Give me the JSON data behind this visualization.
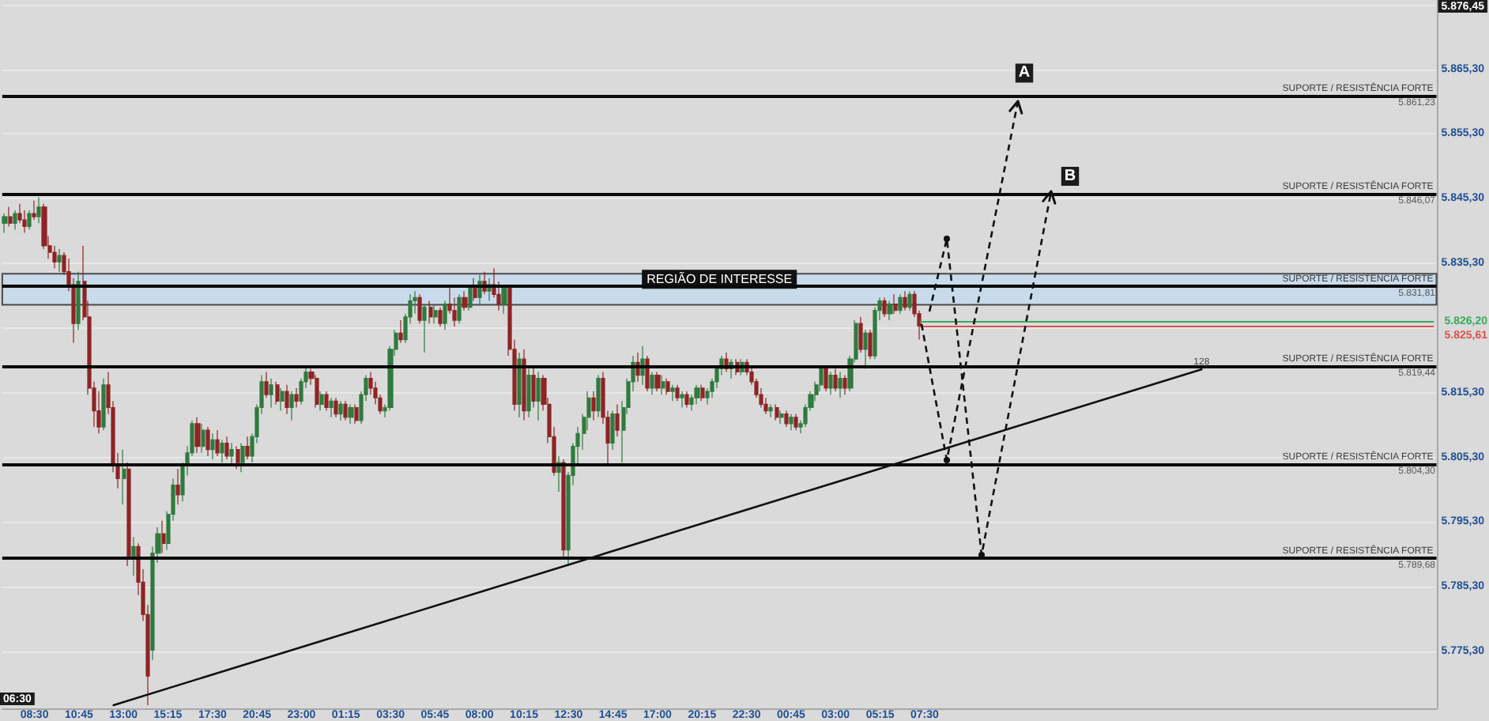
{
  "chart_data": {
    "type": "candlestick",
    "categories": [
      null,
      null,
      null,
      null,
      null,
      null,
      "08:30",
      null,
      null,
      null,
      null,
      null,
      null,
      null,
      null,
      "10:45",
      null,
      null,
      null,
      null,
      null,
      null,
      null,
      null,
      "13:00",
      null,
      null,
      null,
      null,
      null,
      null,
      null,
      null,
      "15:15",
      null,
      null,
      null,
      null,
      null,
      null,
      null,
      null,
      "17:30",
      null,
      null,
      null,
      null,
      null,
      null,
      null,
      null,
      "20:45",
      null,
      null,
      null,
      null,
      null,
      null,
      null,
      null,
      "23:00",
      null,
      null,
      null,
      null,
      null,
      null,
      null,
      null,
      "01:15",
      null,
      null,
      null,
      null,
      null,
      null,
      null,
      null,
      "03:30",
      null,
      null,
      null,
      null,
      null,
      null,
      null,
      null,
      "05:45",
      null,
      null,
      null,
      null,
      null,
      null,
      null,
      null,
      "08:00",
      null,
      null,
      null,
      null,
      null,
      null,
      null,
      null,
      "10:15",
      null,
      null,
      null,
      null,
      null,
      null,
      null,
      null,
      "12:30",
      null,
      null,
      null,
      null,
      null,
      null,
      null,
      null,
      "14:45",
      null,
      null,
      null,
      null,
      null,
      null,
      null,
      null,
      "17:00",
      null,
      null,
      null,
      null,
      null,
      null,
      null,
      null,
      "20:15",
      null,
      null,
      null,
      null,
      null,
      null,
      null,
      null,
      "22:30",
      null,
      null,
      null,
      null,
      null,
      null,
      null,
      null,
      "00:45",
      null,
      null,
      null,
      null,
      null,
      null,
      null,
      null,
      "03:00",
      null,
      null,
      null,
      null,
      null,
      null,
      null,
      null,
      "05:15",
      null,
      null,
      null,
      null,
      null,
      null,
      null,
      null,
      "07:30",
      null,
      null,
      null,
      null,
      null,
      null,
      null,
      null,
      null,
      null,
      null,
      null,
      null,
      null,
      null,
      null,
      null,
      null,
      null,
      null,
      null,
      null,
      null,
      null,
      null,
      null,
      null,
      null,
      null,
      null,
      null,
      null,
      null,
      null,
      null,
      null,
      null,
      null,
      null,
      null,
      null,
      null,
      null,
      null,
      null,
      null,
      null,
      null,
      null,
      null,
      null,
      null,
      null,
      null,
      null,
      null,
      null,
      null,
      null,
      null,
      null,
      null,
      null,
      null,
      null,
      null,
      null,
      null,
      null,
      null,
      null,
      null,
      null,
      null,
      null,
      null,
      null,
      null,
      null,
      null,
      null,
      null,
      null,
      null,
      null,
      null,
      null,
      null,
      null,
      null,
      null,
      null,
      null,
      null,
      null,
      null,
      null,
      null,
      null,
      null,
      null,
      null,
      null
    ],
    "ohlc": [
      [
        5841.5,
        5843.0,
        5840.0,
        5842.5
      ],
      [
        5842.5,
        5844.0,
        5841.0,
        5841.5
      ],
      [
        5841.5,
        5843.5,
        5840.5,
        5843.0
      ],
      [
        5843.0,
        5844.5,
        5841.5,
        5842.0
      ],
      [
        5842.0,
        5843.5,
        5840.0,
        5841.0
      ],
      [
        5841.0,
        5843.5,
        5840.5,
        5843.0
      ],
      [
        5843.0,
        5845.0,
        5842.0,
        5842.5
      ],
      [
        5842.5,
        5845.5,
        5841.5,
        5844.0
      ],
      [
        5844.0,
        5844.5,
        5837.5,
        5838.0
      ],
      [
        5838.0,
        5839.5,
        5836.0,
        5837.0
      ],
      [
        5837.0,
        5838.0,
        5834.5,
        5835.5
      ],
      [
        5835.5,
        5837.5,
        5834.0,
        5836.5
      ],
      [
        5836.5,
        5837.0,
        5833.5,
        5834.0
      ],
      [
        5834.0,
        5836.0,
        5831.0,
        5832.0
      ],
      [
        5832.0,
        5833.0,
        5823.0,
        5826.0
      ],
      [
        5826.0,
        5834.0,
        5825.0,
        5832.5
      ],
      [
        5832.5,
        5838.0,
        5826.5,
        5827.0
      ],
      [
        5827.0,
        5829.5,
        5815.0,
        5816.0
      ],
      [
        5816.0,
        5817.0,
        5810.0,
        5812.5
      ],
      [
        5812.5,
        5815.5,
        5809.0,
        5810.0
      ],
      [
        5810.0,
        5817.5,
        5809.5,
        5816.5
      ],
      [
        5816.5,
        5818.5,
        5812.0,
        5813.0
      ],
      [
        5813.0,
        5814.0,
        5803.0,
        5804.0
      ],
      [
        5804.0,
        5806.0,
        5800.5,
        5802.0
      ],
      [
        5802.0,
        5806.5,
        5798.0,
        5803.5
      ],
      [
        5803.5,
        5804.5,
        5788.5,
        5790.0
      ],
      [
        5790.0,
        5793.0,
        5787.0,
        5791.5
      ],
      [
        5791.5,
        5792.0,
        5784.0,
        5786.0
      ],
      [
        5786.0,
        5788.0,
        5780.0,
        5781.0
      ],
      [
        5781.0,
        5782.5,
        5767.0,
        5771.5
      ],
      [
        5775.5,
        5791.5,
        5774.0,
        5790.5
      ],
      [
        5790.5,
        5794.5,
        5789.0,
        5793.5
      ],
      [
        5793.5,
        5795.5,
        5790.5,
        5792.0
      ],
      [
        5792.0,
        5797.0,
        5791.0,
        5796.5
      ],
      [
        5796.5,
        5802.0,
        5795.5,
        5801.0
      ],
      [
        5801.0,
        5803.5,
        5798.0,
        5799.5
      ],
      [
        5799.5,
        5804.5,
        5798.5,
        5804.0
      ],
      [
        5804.0,
        5807.0,
        5802.5,
        5806.0
      ],
      [
        5806.0,
        5811.0,
        5805.5,
        5810.5
      ],
      [
        5810.5,
        5811.5,
        5806.0,
        5807.0
      ],
      [
        5807.0,
        5810.5,
        5806.0,
        5809.5
      ],
      [
        5809.5,
        5810.0,
        5805.5,
        5806.5
      ],
      [
        5806.5,
        5809.0,
        5805.0,
        5808.0
      ],
      [
        5808.0,
        5809.5,
        5805.5,
        5806.0
      ],
      [
        5806.0,
        5808.0,
        5804.5,
        5807.5
      ],
      [
        5807.5,
        5808.5,
        5805.0,
        5805.5
      ],
      [
        5805.5,
        5807.5,
        5804.0,
        5806.5
      ],
      [
        5806.5,
        5807.0,
        5803.5,
        5804.5
      ],
      [
        5804.5,
        5807.5,
        5803.0,
        5807.0
      ],
      [
        5807.0,
        5808.5,
        5805.0,
        5805.5
      ],
      [
        5805.5,
        5809.0,
        5804.5,
        5808.5
      ],
      [
        5808.5,
        5813.5,
        5807.5,
        5813.0
      ],
      [
        5813.0,
        5818.0,
        5812.0,
        5817.0
      ],
      [
        5817.0,
        5818.5,
        5814.5,
        5815.0
      ],
      [
        5815.0,
        5817.5,
        5813.0,
        5816.5
      ],
      [
        5816.5,
        5817.0,
        5813.5,
        5814.0
      ],
      [
        5814.0,
        5816.0,
        5812.5,
        5815.5
      ],
      [
        5815.5,
        5816.5,
        5812.0,
        5813.0
      ],
      [
        5813.0,
        5815.5,
        5811.0,
        5815.0
      ],
      [
        5815.0,
        5816.0,
        5813.0,
        5814.0
      ],
      [
        5814.0,
        5817.5,
        5813.5,
        5817.0
      ],
      [
        5817.0,
        5819.5,
        5816.0,
        5818.5
      ],
      [
        5818.5,
        5819.0,
        5816.5,
        5817.5
      ],
      [
        5817.5,
        5818.0,
        5813.0,
        5813.5
      ],
      [
        5813.5,
        5815.5,
        5812.5,
        5815.0
      ],
      [
        5815.0,
        5815.5,
        5812.5,
        5813.0
      ],
      [
        5813.0,
        5814.5,
        5811.5,
        5814.0
      ],
      [
        5814.0,
        5814.5,
        5811.5,
        5812.0
      ],
      [
        5812.0,
        5814.0,
        5811.0,
        5813.5
      ],
      [
        5813.5,
        5814.0,
        5811.0,
        5811.5
      ],
      [
        5811.5,
        5813.5,
        5810.5,
        5813.0
      ],
      [
        5813.0,
        5813.5,
        5810.5,
        5811.0
      ],
      [
        5811.0,
        5815.5,
        5810.5,
        5815.0
      ],
      [
        5815.0,
        5818.0,
        5814.0,
        5817.5
      ],
      [
        5817.5,
        5818.5,
        5815.0,
        5816.0
      ],
      [
        5816.0,
        5817.0,
        5813.5,
        5814.5
      ],
      [
        5814.5,
        5815.0,
        5812.0,
        5812.5
      ],
      [
        5812.5,
        5813.5,
        5811.5,
        5813.0
      ],
      [
        5813.0,
        5822.5,
        5812.5,
        5822.0
      ],
      [
        5822.0,
        5825.0,
        5821.0,
        5824.5
      ],
      [
        5824.5,
        5826.5,
        5823.0,
        5823.5
      ],
      [
        5823.5,
        5827.5,
        5823.0,
        5827.0
      ],
      [
        5827.0,
        5830.5,
        5826.0,
        5829.5
      ],
      [
        5829.5,
        5831.0,
        5827.5,
        5830.0
      ],
      [
        5830.0,
        5830.5,
        5826.0,
        5826.5
      ],
      [
        5826.5,
        5829.0,
        5821.5,
        5828.5
      ],
      [
        5828.5,
        5829.5,
        5826.0,
        5827.0
      ],
      [
        5827.0,
        5829.0,
        5826.0,
        5828.0
      ],
      [
        5828.0,
        5828.5,
        5825.5,
        5826.0
      ],
      [
        5826.0,
        5829.5,
        5825.0,
        5829.0
      ],
      [
        5829.0,
        5831.5,
        5827.5,
        5828.0
      ],
      [
        5828.0,
        5830.0,
        5825.5,
        5826.5
      ],
      [
        5826.5,
        5830.5,
        5826.0,
        5830.0
      ],
      [
        5830.0,
        5831.0,
        5828.0,
        5828.5
      ],
      [
        5828.5,
        5832.0,
        5828.0,
        5831.5
      ],
      [
        5831.5,
        5833.0,
        5829.5,
        5830.0
      ],
      [
        5830.0,
        5833.5,
        5829.0,
        5832.5
      ],
      [
        5832.5,
        5834.0,
        5830.5,
        5831.0
      ],
      [
        5831.0,
        5833.0,
        5829.5,
        5832.0
      ],
      [
        5832.0,
        5834.5,
        5830.0,
        5830.5
      ],
      [
        5830.5,
        5832.5,
        5828.0,
        5829.0
      ],
      [
        5829.0,
        5832.0,
        5827.5,
        5831.5
      ],
      [
        5831.5,
        5832.0,
        5821.0,
        5822.0
      ],
      [
        5822.0,
        5823.5,
        5812.5,
        5813.5
      ],
      [
        5813.5,
        5821.5,
        5811.5,
        5820.5
      ],
      [
        5820.5,
        5822.0,
        5811.0,
        5812.5
      ],
      [
        5812.5,
        5819.0,
        5811.5,
        5818.0
      ],
      [
        5818.0,
        5819.5,
        5813.0,
        5814.0
      ],
      [
        5814.0,
        5818.5,
        5811.0,
        5817.5
      ],
      [
        5817.5,
        5818.0,
        5812.5,
        5813.5
      ],
      [
        5813.5,
        5814.5,
        5807.5,
        5808.5
      ],
      [
        5808.5,
        5810.0,
        5802.5,
        5803.0
      ],
      [
        5803.0,
        5805.5,
        5800.0,
        5804.5
      ],
      [
        5804.5,
        5805.0,
        5789.5,
        5791.0
      ],
      [
        5791.0,
        5803.0,
        5788.5,
        5802.5
      ],
      [
        5802.5,
        5807.5,
        5801.0,
        5807.0
      ],
      [
        5807.0,
        5810.0,
        5804.0,
        5809.0
      ],
      [
        5809.0,
        5812.0,
        5806.5,
        5811.5
      ],
      [
        5811.5,
        5815.5,
        5809.5,
        5814.5
      ],
      [
        5814.5,
        5815.5,
        5811.0,
        5812.5
      ],
      [
        5812.5,
        5818.0,
        5811.5,
        5817.5
      ],
      [
        5817.5,
        5818.5,
        5810.5,
        5811.5
      ],
      [
        5811.5,
        5812.5,
        5804.0,
        5807.5
      ],
      [
        5807.5,
        5812.5,
        5806.5,
        5812.0
      ],
      [
        5812.0,
        5813.5,
        5808.5,
        5809.5
      ],
      [
        5809.5,
        5814.0,
        5804.5,
        5813.0
      ],
      [
        5813.0,
        5817.5,
        5812.0,
        5817.0
      ],
      [
        5817.0,
        5821.0,
        5815.5,
        5820.0
      ],
      [
        5820.0,
        5821.5,
        5817.0,
        5818.0
      ],
      [
        5818.0,
        5822.5,
        5816.5,
        5820.5
      ],
      [
        5820.5,
        5821.0,
        5815.5,
        5816.0
      ],
      [
        5816.0,
        5818.5,
        5815.0,
        5818.0
      ],
      [
        5818.0,
        5818.5,
        5815.5,
        5816.0
      ],
      [
        5816.0,
        5818.0,
        5815.0,
        5817.0
      ],
      [
        5817.0,
        5817.5,
        5815.0,
        5815.5
      ],
      [
        5815.5,
        5816.5,
        5814.0,
        5816.0
      ],
      [
        5816.0,
        5816.5,
        5814.0,
        5814.5
      ],
      [
        5814.5,
        5815.5,
        5813.0,
        5815.0
      ],
      [
        5815.0,
        5815.5,
        5813.0,
        5813.5
      ],
      [
        5813.5,
        5815.0,
        5812.5,
        5814.5
      ],
      [
        5814.5,
        5816.5,
        5813.5,
        5816.0
      ],
      [
        5816.0,
        5816.5,
        5814.0,
        5814.5
      ],
      [
        5814.5,
        5816.0,
        5813.5,
        5815.5
      ],
      [
        5815.5,
        5817.5,
        5814.5,
        5817.0
      ],
      [
        5817.0,
        5819.5,
        5816.0,
        5819.0
      ],
      [
        5819.0,
        5821.0,
        5818.0,
        5820.5
      ],
      [
        5820.5,
        5821.5,
        5818.5,
        5819.0
      ],
      [
        5819.0,
        5820.5,
        5817.5,
        5820.0
      ],
      [
        5820.0,
        5820.5,
        5818.0,
        5818.5
      ],
      [
        5818.5,
        5820.5,
        5818.0,
        5820.0
      ],
      [
        5820.0,
        5820.5,
        5818.0,
        5818.5
      ],
      [
        5818.5,
        5819.5,
        5816.5,
        5817.0
      ],
      [
        5817.0,
        5817.5,
        5814.5,
        5815.0
      ],
      [
        5815.0,
        5816.0,
        5813.0,
        5813.5
      ],
      [
        5813.5,
        5814.5,
        5812.0,
        5812.5
      ],
      [
        5812.5,
        5813.5,
        5811.5,
        5813.0
      ],
      [
        5813.0,
        5813.5,
        5811.0,
        5811.5
      ],
      [
        5811.5,
        5812.5,
        5810.5,
        5812.0
      ],
      [
        5812.0,
        5812.5,
        5810.0,
        5810.5
      ],
      [
        5810.5,
        5812.0,
        5809.5,
        5811.5
      ],
      [
        5811.5,
        5812.0,
        5809.5,
        5810.0
      ],
      [
        5810.0,
        5811.0,
        5809.0,
        5810.5
      ],
      [
        5810.5,
        5813.5,
        5810.0,
        5813.0
      ],
      [
        5813.0,
        5815.5,
        5812.5,
        5815.0
      ],
      [
        5815.0,
        5817.0,
        5814.0,
        5816.5
      ],
      [
        5816.5,
        5819.5,
        5815.5,
        5819.0
      ],
      [
        5819.0,
        5819.5,
        5815.5,
        5816.0
      ],
      [
        5816.0,
        5818.5,
        5815.0,
        5818.0
      ],
      [
        5818.0,
        5819.0,
        5815.5,
        5816.0
      ],
      [
        5816.0,
        5818.5,
        5814.5,
        5817.5
      ],
      [
        5817.5,
        5818.0,
        5815.0,
        5816.0
      ],
      [
        5816.0,
        5821.0,
        5815.5,
        5820.5
      ],
      [
        5820.5,
        5826.5,
        5820.0,
        5826.0
      ],
      [
        5826.0,
        5827.0,
        5821.5,
        5822.0
      ],
      [
        5822.0,
        5825.0,
        5819.0,
        5824.5
      ],
      [
        5824.5,
        5825.0,
        5820.5,
        5821.0
      ],
      [
        5821.0,
        5828.5,
        5820.5,
        5828.0
      ],
      [
        5828.0,
        5830.0,
        5826.5,
        5829.5
      ],
      [
        5829.5,
        5830.0,
        5827.0,
        5827.5
      ],
      [
        5827.5,
        5829.5,
        5826.5,
        5829.0
      ],
      [
        5829.0,
        5830.5,
        5827.5,
        5828.0
      ],
      [
        5828.0,
        5830.5,
        5827.5,
        5830.0
      ],
      [
        5830.0,
        5831.0,
        5828.0,
        5828.5
      ],
      [
        5828.5,
        5831.0,
        5828.0,
        5830.5
      ],
      [
        5830.5,
        5831.0,
        5827.0,
        5827.5
      ],
      [
        5827.5,
        5828.0,
        5823.5,
        5825.61
      ],
      null,
      null,
      null,
      null,
      null,
      null,
      null,
      null,
      null,
      null,
      null,
      null,
      null,
      null,
      null,
      null,
      null,
      null,
      null,
      null,
      null,
      null,
      null,
      null,
      null,
      null,
      null,
      null,
      null,
      null,
      null,
      null,
      null,
      null,
      null,
      null,
      null,
      null,
      null,
      null,
      null,
      null,
      null,
      null,
      null,
      null,
      null,
      null,
      null,
      null,
      null,
      null,
      null,
      null,
      null,
      null,
      null,
      null,
      null,
      null,
      null,
      null,
      null,
      null,
      null,
      null,
      null,
      null,
      null,
      null,
      null,
      null,
      null,
      null,
      null,
      null,
      null,
      null,
      null,
      null,
      null,
      null,
      null,
      null,
      null,
      null,
      null,
      null,
      null,
      null,
      null,
      null,
      null,
      null,
      null,
      null,
      null,
      null,
      null,
      null,
      null,
      null,
      null,
      null
    ],
    "series": [
      {
        "type": "line",
        "name": "128",
        "color": "#111111",
        "values": [
          null,
          null,
          null,
          null,
          null,
          null,
          null,
          null,
          null,
          null,
          null,
          null,
          null,
          null,
          null,
          null,
          null,
          null,
          null,
          null,
          null,
          null,
          5767.0,
          null,
          null,
          null,
          null,
          null,
          null,
          null,
          null,
          null,
          null,
          null,
          null,
          null,
          null,
          null,
          null,
          null,
          null,
          null,
          null,
          null,
          null,
          null,
          null,
          null,
          null,
          null,
          null,
          null,
          null,
          null,
          null,
          null,
          null,
          null,
          null,
          null,
          null,
          null,
          null,
          null,
          null,
          null,
          null,
          null,
          null,
          null,
          null,
          null,
          null,
          null,
          null,
          null,
          null,
          null,
          null,
          null,
          null,
          null,
          null,
          null,
          null,
          null,
          null,
          null,
          null,
          null,
          null,
          null,
          null,
          null,
          null,
          null,
          null,
          null,
          null,
          null,
          null,
          null,
          null,
          null,
          null,
          null,
          null,
          null,
          null,
          null,
          null,
          null,
          null,
          null,
          null,
          null,
          null,
          null,
          null,
          null,
          null,
          null,
          null,
          null,
          null,
          null,
          null,
          null,
          null,
          null,
          null,
          null,
          null,
          null,
          null,
          null,
          null,
          null,
          null,
          null,
          null,
          null,
          null,
          null,
          null,
          null,
          null,
          null,
          null,
          null,
          null,
          null,
          null,
          null,
          null,
          null,
          null,
          null,
          null,
          null,
          null,
          null,
          null,
          null,
          null,
          null,
          null,
          null,
          null,
          null,
          null,
          null,
          null,
          null,
          null,
          null,
          null,
          null,
          null,
          null,
          null,
          null,
          null,
          null,
          null,
          null,
          null,
          null,
          null,
          null,
          null,
          null,
          null,
          null,
          null,
          null,
          null,
          null,
          null,
          null,
          null,
          null,
          null,
          null,
          null,
          null,
          null,
          null,
          null,
          null,
          null,
          null,
          null,
          null,
          null,
          null,
          null,
          null,
          null,
          null,
          null,
          null,
          null,
          null,
          null,
          null,
          null,
          null,
          null,
          null,
          null,
          null,
          null,
          null,
          null,
          null,
          null,
          null,
          null,
          null,
          null,
          null,
          5818.9,
          null,
          null,
          null,
          null,
          null,
          null,
          null,
          null,
          null,
          null,
          null,
          null,
          null,
          null,
          null,
          null,
          null,
          null,
          null,
          null,
          null,
          null,
          null,
          null,
          null,
          null,
          null,
          null,
          null,
          null,
          null,
          null,
          null,
          null,
          null,
          null,
          null,
          null,
          null,
          null,
          null,
          null,
          null,
          null,
          null,
          null,
          null
        ]
      }
    ],
    "ylim": [
      5766.5,
      5876
    ],
    "yticks": [
      {
        "value": 5775.3,
        "label": "5.775,30"
      },
      {
        "value": 5785.3,
        "label": "5.785,30"
      },
      {
        "value": 5795.3,
        "label": "5.795,30"
      },
      {
        "value": 5805.3,
        "label": "5.805,30"
      },
      {
        "value": 5815.3,
        "label": "5.815,30"
      },
      {
        "value": 5825.3,
        "label": null
      },
      {
        "value": 5835.3,
        "label": "5.835,30"
      },
      {
        "value": 5845.3,
        "label": "5.845,30"
      },
      {
        "value": 5855.3,
        "label": "5.855,30"
      },
      {
        "value": 5865.3,
        "label": "5.865,30"
      },
      {
        "value": 5875.3,
        "label": null
      }
    ],
    "grid": "y",
    "ref_lines": [
      {
        "axis": "y",
        "value": 5861.23,
        "label": "SUPORTE / RESISTÊNCIA FORTE"
      },
      {
        "axis": "y",
        "value": 5846.07,
        "label": "SUPORTE / RESISTÊNCIA FORTE"
      },
      {
        "axis": "y",
        "value": 5831.81,
        "label": "SUPORTE / RESISTÊNCIA FORTE"
      },
      {
        "axis": "y",
        "value": 5819.44,
        "label": "SUPORTE / RESISTÊNCIA FORTE"
      },
      {
        "axis": "y",
        "value": 5804.3,
        "label": "SUPORTE / RESISTÊNCIA FORTE"
      },
      {
        "axis": "y",
        "value": 5789.68,
        "label": "SUPORTE / RESISTÊNCIA FORTE"
      },
      {
        "axis": "y",
        "value": 5826.2,
        "label": "5.826,20",
        "color": "#3aa860"
      },
      {
        "axis": "y",
        "value": 5825.61,
        "label": "5.825,61",
        "color": "#d9534f"
      }
    ],
    "bands": [
      {
        "axis": "y",
        "from": 5828.9,
        "to": 5833.7,
        "label": "REGIÃO DE INTERESSE",
        "color": "#c3dbef"
      }
    ],
    "annotations": [
      "5.876,45",
      "06:30",
      {
        "text": "A",
        "y": 5860.3
      },
      {
        "text": "B",
        "y": 5846.3
      },
      {
        "text": "5.861,23",
        "y": 5861.23
      },
      {
        "text": "5.846,07",
        "y": 5846.07
      },
      {
        "text": "5.831,81",
        "y": 5831.81
      },
      {
        "text": "5.819,44",
        "y": 5819.44
      },
      {
        "text": "5.804,30",
        "y": 5804.3
      },
      {
        "text": "5.789,68",
        "y": 5789.68
      }
    ]
  }
}
